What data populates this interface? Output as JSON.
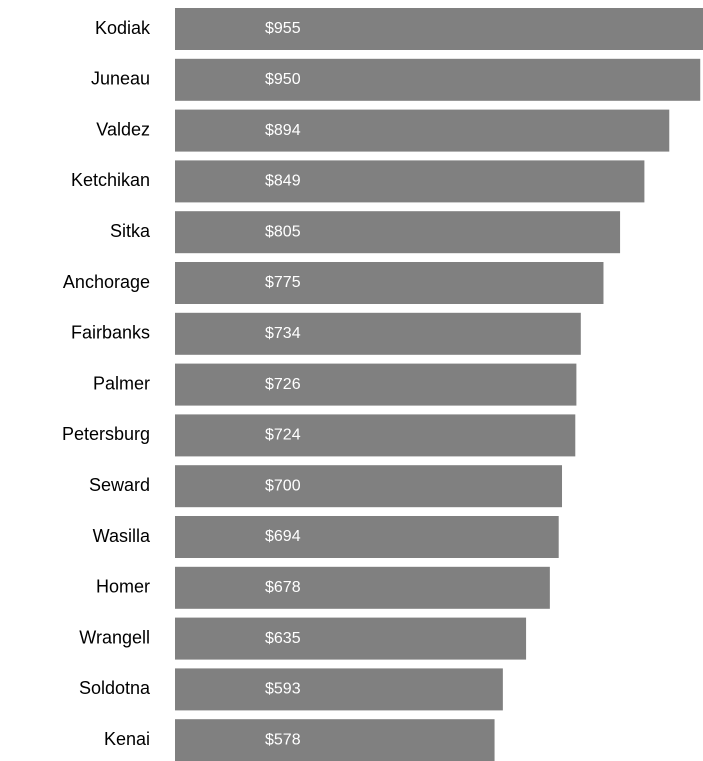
{
  "chart_data": {
    "type": "bar",
    "orientation": "horizontal",
    "color": "#808080",
    "categories": [
      "Kodiak",
      "Juneau",
      "Valdez",
      "Ketchikan",
      "Sitka",
      "Anchorage",
      "Fairbanks",
      "Palmer",
      "Petersburg",
      "Seward",
      "Wasilla",
      "Homer",
      "Wrangell",
      "Soldotna",
      "Kenai"
    ],
    "values": [
      955,
      950,
      894,
      849,
      805,
      775,
      734,
      726,
      724,
      700,
      694,
      678,
      635,
      593,
      578
    ],
    "value_labels": [
      "$955",
      "$950",
      "$894",
      "$849",
      "$805",
      "$775",
      "$734",
      "$726",
      "$724",
      "$700",
      "$694",
      "$678",
      "$635",
      "$593",
      "$578"
    ]
  }
}
